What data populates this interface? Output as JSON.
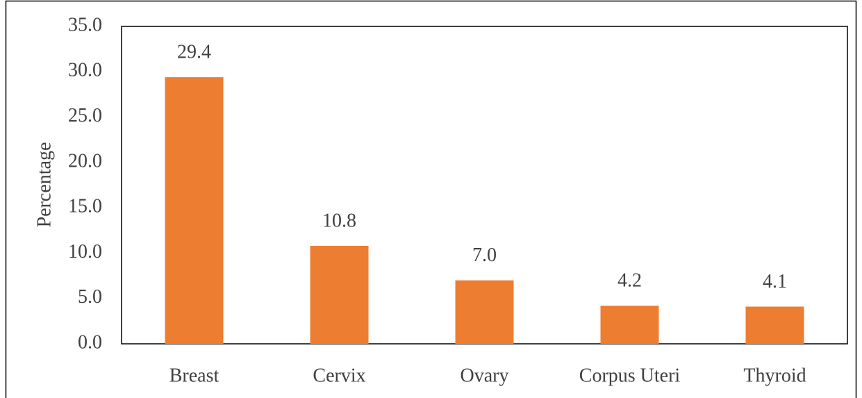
{
  "chart_data": {
    "type": "bar",
    "y_label": "Percentage",
    "categories": [
      "Breast",
      "Cervix",
      "Ovary",
      "Corpus Uteri",
      "Thyroid"
    ],
    "values": [
      29.4,
      10.8,
      7.0,
      4.2,
      4.1
    ],
    "value_labels": [
      "29.4",
      "10.8",
      "7.0",
      "4.2",
      "4.1"
    ],
    "color": "#ed7d31",
    "ylim": [
      0,
      35
    ],
    "yticks": [
      {
        "value": 0,
        "label": "0.0"
      },
      {
        "value": 5,
        "label": "5.0"
      },
      {
        "value": 10,
        "label": "10.0"
      },
      {
        "value": 15,
        "label": "15.0"
      },
      {
        "value": 20,
        "label": "20.0"
      },
      {
        "value": 25,
        "label": "25.0"
      },
      {
        "value": 30,
        "label": "30.0"
      },
      {
        "value": 35,
        "label": "35.0"
      }
    ],
    "grid": false
  }
}
